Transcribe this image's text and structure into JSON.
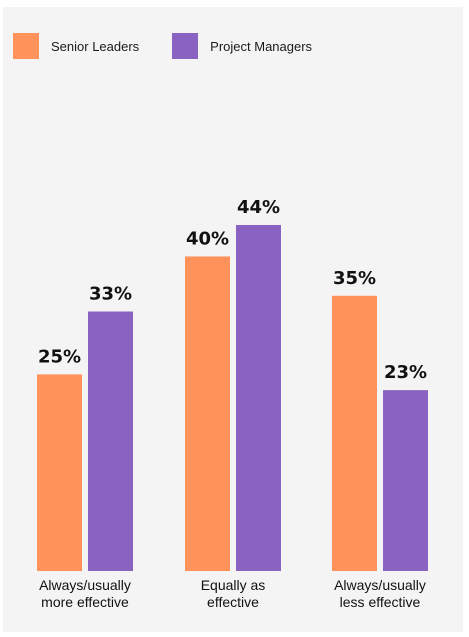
{
  "legend": {
    "senior_leaders": "Senior Leaders",
    "project_managers": "Project Managers"
  },
  "colors": {
    "senior_leaders": "#ff915a",
    "project_managers": "#8a63c2",
    "background": "#f4f4f4"
  },
  "chart_data": {
    "type": "bar",
    "title": "",
    "xlabel": "",
    "ylabel": "",
    "categories": [
      [
        "Always/usually",
        "more effective"
      ],
      [
        "Equally as",
        "effective"
      ],
      [
        "Always/usually",
        "less effective"
      ]
    ],
    "series": [
      {
        "name": "Senior Leaders",
        "values": [
          25,
          40,
          35
        ],
        "labels": [
          "25%",
          "40%",
          "35%"
        ]
      },
      {
        "name": "Project Managers",
        "values": [
          33,
          44,
          23
        ],
        "labels": [
          "33%",
          "44%",
          "23%"
        ]
      }
    ],
    "ylim": [
      0,
      44
    ],
    "grid": false,
    "legend": "top-left"
  }
}
